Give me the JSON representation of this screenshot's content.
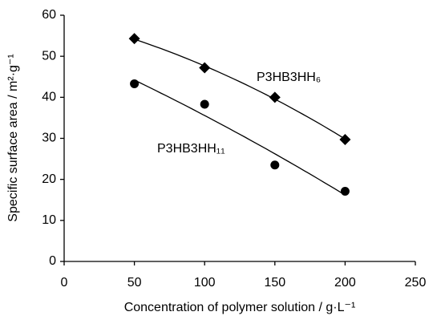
{
  "chart_data": {
    "type": "scatter",
    "x": [
      50,
      100,
      150,
      200
    ],
    "series": [
      {
        "name": "P3HB3HH₆",
        "color": "#000000",
        "marker": "diamond",
        "values": [
          54.3,
          47.2,
          40,
          29.7
        ]
      },
      {
        "name": "P3HB3HH₁₁",
        "color": "#000000",
        "marker": "circle",
        "values": [
          43.3,
          38.3,
          23.5,
          17.1
        ]
      }
    ],
    "trendline": "polynomial",
    "x_label": "Concentration of polymer solution / g·L⁻¹",
    "y_label": "Specific surface area / m²·g⁻¹",
    "xlim": [
      0,
      250
    ],
    "xticks": [
      0,
      50,
      100,
      150,
      200,
      250
    ],
    "ylim": [
      0,
      60
    ],
    "yticks": [
      0,
      10,
      20,
      30,
      40,
      50,
      60
    ],
    "grid": false
  }
}
